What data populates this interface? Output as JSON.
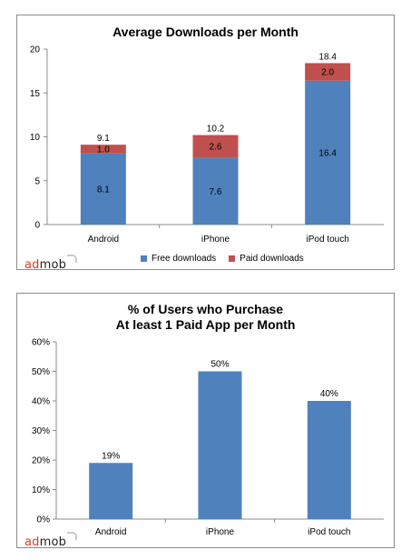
{
  "colors": {
    "free": "#4f81bd",
    "paid": "#c0504d",
    "axis": "#8c8c8c",
    "grid": "#d9d9d9"
  },
  "logo": {
    "ad": "ad",
    "mob": "mob"
  },
  "chart_data": [
    {
      "type": "bar",
      "stacked": true,
      "title": "Average Downloads per Month",
      "categories": [
        "Android",
        "iPhone",
        "iPod touch"
      ],
      "series": [
        {
          "name": "Free downloads",
          "values": [
            8.1,
            7.6,
            16.4
          ]
        },
        {
          "name": "Paid downloads",
          "values": [
            1.0,
            2.6,
            2.0
          ]
        }
      ],
      "totals": [
        9.1,
        10.2,
        18.4
      ],
      "ylim": [
        0,
        20
      ],
      "yticks": [
        0,
        5,
        10,
        15,
        20
      ],
      "ytick_labels": [
        "0",
        "5",
        "10",
        "15",
        "20"
      ],
      "value_labels": [
        [
          "8.1",
          "7.6",
          "16.4"
        ],
        [
          "1.0",
          "2.6",
          "2.0"
        ]
      ],
      "total_labels": [
        "9.1",
        "10.2",
        "18.4"
      ],
      "legend": [
        "Free downloads",
        "Paid downloads"
      ],
      "legend_position": "bottom",
      "grid": false
    },
    {
      "type": "bar",
      "title_lines": [
        "% of Users who Purchase",
        "At least 1 Paid App per Month"
      ],
      "categories": [
        "Android",
        "iPhone",
        "iPod touch"
      ],
      "values": [
        19,
        50,
        40
      ],
      "value_labels": [
        "19%",
        "50%",
        "40%"
      ],
      "ylim": [
        0,
        60
      ],
      "yticks": [
        0,
        10,
        20,
        30,
        40,
        50,
        60
      ],
      "ytick_labels": [
        "0%",
        "10%",
        "20%",
        "30%",
        "40%",
        "50%",
        "60%"
      ],
      "grid": false
    }
  ]
}
